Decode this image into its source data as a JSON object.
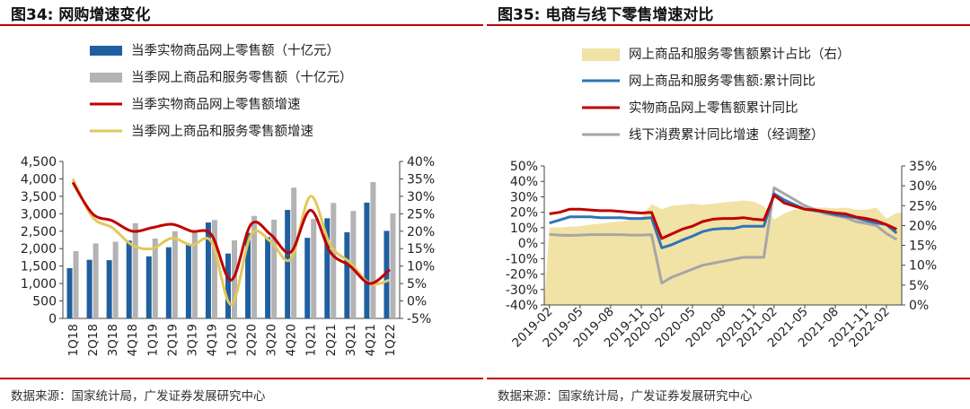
{
  "figures": [
    {
      "title": "图34:  网购增速变化",
      "source": "数据来源：国家统计局，广发证券发展研究中心"
    },
    {
      "title": "图35:  电商与线下零售增速对比",
      "source": "数据来源：国家统计局，广发证券发展研究中心"
    }
  ],
  "colors": {
    "blue": "#1f5fa0",
    "gray": "#b3b3b3",
    "red": "#c00000",
    "yellow": "#e3c85a",
    "area": "#f1e2a6",
    "lightblue": "#2e75b6",
    "lightgray": "#a6a6a6",
    "accent": "#c00000"
  },
  "chart_data": [
    {
      "type": "bar",
      "id": "fig34",
      "categories": [
        "1Q18",
        "2Q18",
        "3Q18",
        "4Q18",
        "1Q19",
        "2Q19",
        "3Q19",
        "4Q19",
        "1Q20",
        "2Q20",
        "3Q20",
        "4Q20",
        "1Q21",
        "2Q21",
        "3Q21",
        "4Q21",
        "1Q22"
      ],
      "left_axis": {
        "ticks": [
          "0",
          "500",
          "1,000",
          "1,500",
          "2,000",
          "2,500",
          "3,000",
          "3,500",
          "4,000",
          "4,500"
        ],
        "ylim": [
          0,
          4500
        ]
      },
      "right_axis": {
        "ticks": [
          "-5%",
          "0%",
          "5%",
          "10%",
          "15%",
          "20%",
          "25%",
          "30%",
          "35%",
          "40%"
        ],
        "ylim": [
          -5,
          40
        ]
      },
      "series": [
        {
          "name": "当季实物商品网上零售额（十亿元）",
          "kind": "bar",
          "axis": "left",
          "color": "#1f5fa0",
          "values": [
            1440,
            1680,
            1670,
            2230,
            1780,
            2040,
            2110,
            2750,
            1860,
            2450,
            2330,
            3110,
            2310,
            2870,
            2470,
            3320,
            2510
          ]
        },
        {
          "name": "当季网上商品和服务零售额（十亿元）",
          "kind": "bar",
          "axis": "left",
          "color": "#b3b3b3",
          "values": [
            1930,
            2150,
            2200,
            2730,
            2290,
            2500,
            2500,
            2820,
            2240,
            2940,
            2830,
            3750,
            2850,
            3310,
            3080,
            3910,
            3010
          ]
        },
        {
          "name": "当季实物商品网上零售额增速",
          "kind": "line",
          "axis": "right",
          "color": "#c00000",
          "values": [
            34,
            25,
            23,
            20,
            21,
            22,
            20,
            19,
            6,
            22,
            19,
            14,
            26,
            14,
            10,
            5,
            9
          ]
        },
        {
          "name": "当季网上商品和服务零售额增速",
          "kind": "line",
          "axis": "right",
          "color": "#e3c85a",
          "values": [
            35,
            24,
            21,
            16,
            15,
            18,
            16,
            17,
            -1,
            19,
            17,
            12,
            30,
            16,
            11,
            5,
            6
          ]
        }
      ]
    },
    {
      "type": "line",
      "id": "fig35",
      "x": [
        "2019-02",
        "2019-03",
        "2019-04",
        "2019-05",
        "2019-06",
        "2019-07",
        "2019-08",
        "2019-09",
        "2019-10",
        "2019-11",
        "2019-12",
        "2020-02",
        "2020-03",
        "2020-04",
        "2020-05",
        "2020-06",
        "2020-07",
        "2020-08",
        "2020-09",
        "2020-10",
        "2020-11",
        "2020-12",
        "2021-02",
        "2021-03",
        "2021-04",
        "2021-05",
        "2021-06",
        "2021-07",
        "2021-08",
        "2021-09",
        "2021-10",
        "2021-11",
        "2021-12",
        "2022-02",
        "2022-03"
      ],
      "x_tick_labels": [
        "2019-02",
        "2019-05",
        "2019-08",
        "2019-11",
        "2020-02",
        "2020-05",
        "2020-08",
        "2020-11",
        "2021-02",
        "2021-05",
        "2021-08",
        "2021-11",
        "2022-02"
      ],
      "x_tick_index": [
        0,
        3,
        6,
        9,
        11,
        14,
        17,
        20,
        22,
        25,
        28,
        31,
        33
      ],
      "left_axis": {
        "ticks": [
          "-40%",
          "-30%",
          "-20%",
          "-10%",
          "0%",
          "10%",
          "20%",
          "30%",
          "40%",
          "50%"
        ],
        "ylim": [
          -40,
          50
        ]
      },
      "right_axis": {
        "ticks": [
          "0%",
          "5%",
          "10%",
          "15%",
          "20%",
          "25%",
          "30%",
          "35%"
        ],
        "ylim": [
          0,
          35
        ]
      },
      "series": [
        {
          "name": "网上商品和服务零售额累计占比（右）",
          "kind": "area",
          "axis": "right",
          "color": "#f1e2a6",
          "values": [
            19.5,
            19.5,
            19.7,
            19.8,
            20.2,
            20.5,
            20.8,
            21,
            21.5,
            22,
            25.4,
            24.1,
            25,
            25.2,
            25.5,
            25.2,
            25.5,
            25.8,
            26,
            26.3,
            26,
            24.9,
            21.5,
            23,
            24,
            24.3,
            24.5,
            24.5,
            24.3,
            24.5,
            24,
            24,
            24.5,
            21.7,
            23.2
          ]
        },
        {
          "name": "网上商品和服务零售额:累计同比",
          "kind": "line",
          "axis": "left",
          "color": "#2e75b6",
          "values": [
            13,
            15,
            17,
            17,
            17,
            16.5,
            16.5,
            16.5,
            16,
            16,
            16.5,
            -3,
            -1,
            2,
            4.5,
            7.5,
            9,
            9.5,
            9.5,
            11,
            11,
            11,
            32,
            28,
            25,
            22,
            21,
            20,
            18.5,
            17.5,
            16.5,
            14.5,
            13,
            12,
            6.5
          ]
        },
        {
          "name": "实物商品网上零售额累计同比",
          "kind": "line",
          "axis": "left",
          "color": "#c00000",
          "values": [
            19,
            20,
            22,
            22,
            21.5,
            21,
            21,
            20.5,
            20,
            19.5,
            20,
            3,
            6,
            9,
            11,
            14,
            15.5,
            16,
            16,
            16.5,
            15.5,
            15,
            31,
            26,
            24,
            22,
            21.5,
            20.5,
            19.5,
            19,
            17,
            16,
            14.5,
            12,
            9
          ]
        },
        {
          "name": "线下消费累计同比增速（经调整）",
          "kind": "line",
          "axis": "right",
          "color": "#a6a6a6",
          "values": [
            17.8,
            17.6,
            17.5,
            17.6,
            17.7,
            17.7,
            17.7,
            17.7,
            17.6,
            17.6,
            17.7,
            5.5,
            7,
            8,
            9,
            10,
            10.5,
            11,
            11.5,
            12,
            12,
            12,
            29.5,
            28,
            26.5,
            25,
            24,
            23,
            22.5,
            22,
            21,
            20.5,
            20,
            18,
            16.5
          ]
        }
      ]
    }
  ]
}
